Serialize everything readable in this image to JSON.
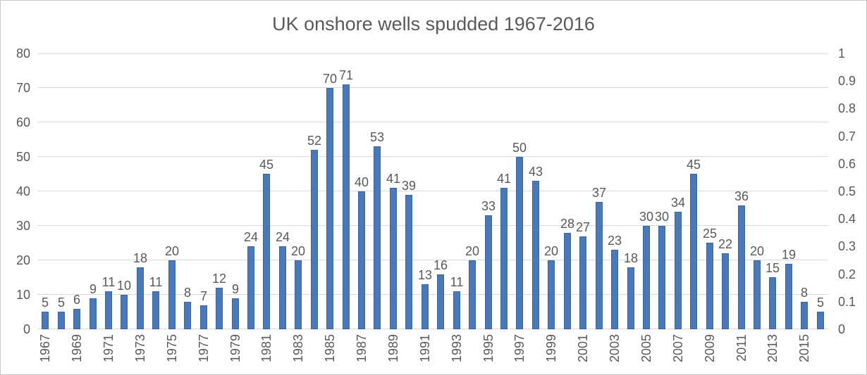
{
  "chart_data": {
    "type": "bar",
    "title": "UK onshore wells spudded 1967-2016",
    "categories": [
      1967,
      1968,
      1969,
      1970,
      1971,
      1972,
      1973,
      1974,
      1975,
      1976,
      1977,
      1978,
      1979,
      1980,
      1981,
      1982,
      1983,
      1984,
      1985,
      1986,
      1987,
      1988,
      1989,
      1990,
      1991,
      1992,
      1993,
      1994,
      1995,
      1996,
      1997,
      1998,
      1999,
      2000,
      2001,
      2002,
      2003,
      2004,
      2005,
      2006,
      2007,
      2008,
      2009,
      2010,
      2011,
      2012,
      2013,
      2014,
      2015,
      2016
    ],
    "values": [
      5,
      5,
      6,
      9,
      11,
      10,
      18,
      11,
      20,
      8,
      7,
      12,
      9,
      24,
      45,
      24,
      20,
      52,
      70,
      71,
      40,
      53,
      41,
      39,
      13,
      16,
      11,
      20,
      33,
      41,
      50,
      43,
      20,
      28,
      27,
      37,
      23,
      18,
      30,
      30,
      34,
      45,
      25,
      22,
      36,
      20,
      15,
      19,
      8,
      5
    ],
    "data_labels": true,
    "left_axis": {
      "min": 0,
      "max": 80,
      "step": 10,
      "tick_labels": [
        "0",
        "10",
        "20",
        "30",
        "40",
        "50",
        "60",
        "70",
        "80"
      ]
    },
    "right_axis": {
      "min": 0,
      "max": 1,
      "step": 0.1,
      "tick_labels": [
        "0",
        "0.1",
        "0.2",
        "0.3",
        "0.4",
        "0.5",
        "0.6",
        "0.7",
        "0.8",
        "0.9",
        "1"
      ]
    },
    "x_axis": {
      "tick_every": 2,
      "tick_labels": [
        "1967",
        "1969",
        "1971",
        "1973",
        "1975",
        "1977",
        "1979",
        "1981",
        "1983",
        "1985",
        "1987",
        "1989",
        "1991",
        "1993",
        "1995",
        "1997",
        "1999",
        "2001",
        "2003",
        "2005",
        "2007",
        "2009",
        "2011",
        "2013",
        "2015"
      ]
    },
    "grid": "horizontal",
    "legend": "none",
    "colors": {
      "bar_fill": "#4a78b8",
      "bar_border": "#3a66a0",
      "gridline": "#d9d9d9",
      "text": "#595959",
      "chart_border": "#c9c9c9",
      "background": "#ffffff"
    }
  }
}
